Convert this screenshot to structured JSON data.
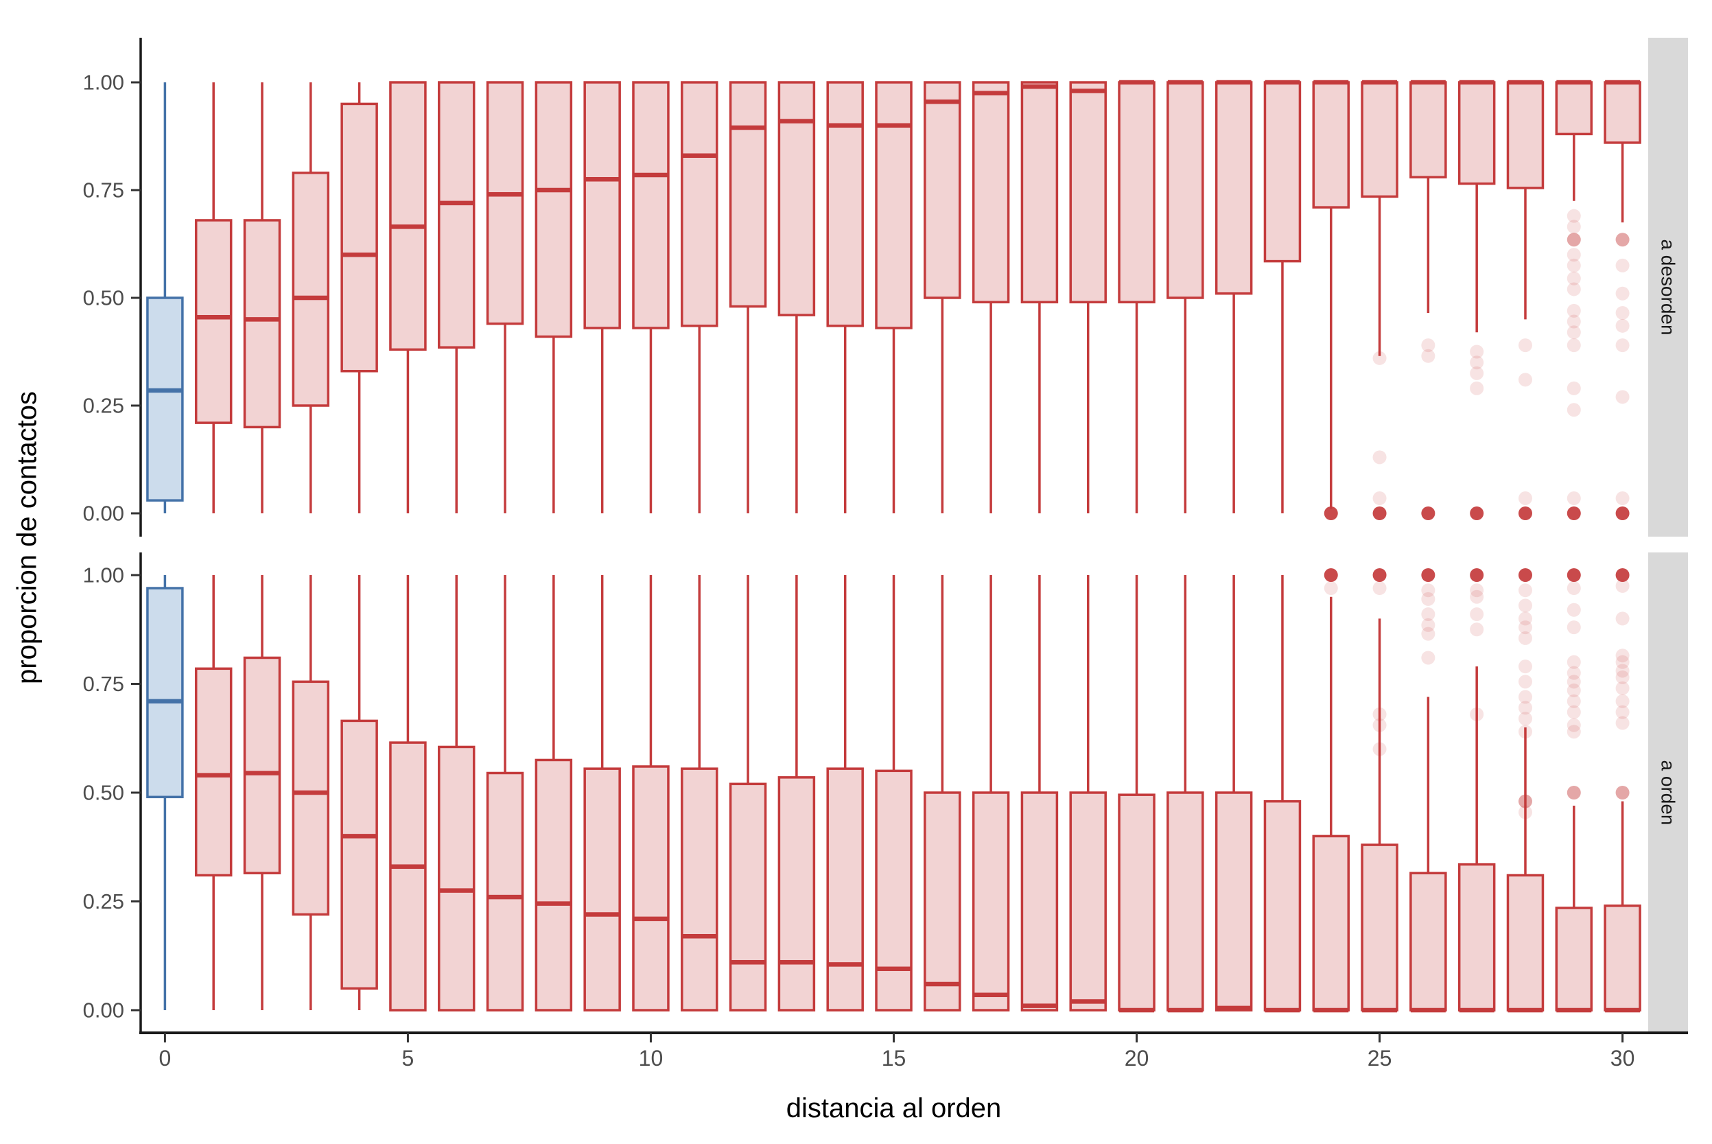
{
  "chart_data": {
    "type": "boxplot",
    "title": "",
    "xlabel": "distancia al orden",
    "ylabel": "proporcion de contactos",
    "x_ticks": [
      0,
      5,
      10,
      15,
      20,
      25,
      30
    ],
    "y_ticks": [
      "1.00",
      "0.75",
      "0.50",
      "0.25",
      "0.00"
    ],
    "y_tick_values": [
      1.0,
      0.75,
      0.5,
      0.25,
      0.0
    ],
    "xlim": [
      0,
      30
    ],
    "ylim": [
      0,
      1
    ],
    "grid": "off",
    "legend": "none",
    "facet_labels": [
      "a desorden",
      "a orden"
    ],
    "facets": [
      {
        "label": "a desorden",
        "boxes": [
          {
            "x": 0,
            "lo": 0,
            "q1": 0.03,
            "med": 0.285,
            "q3": 0.5,
            "hi": 1,
            "group": "blue"
          },
          {
            "x": 1,
            "lo": 0,
            "q1": 0.21,
            "med": 0.455,
            "q3": 0.68,
            "hi": 1,
            "group": "red"
          },
          {
            "x": 2,
            "lo": 0,
            "q1": 0.2,
            "med": 0.45,
            "q3": 0.68,
            "hi": 1,
            "group": "red"
          },
          {
            "x": 3,
            "lo": 0,
            "q1": 0.25,
            "med": 0.5,
            "q3": 0.79,
            "hi": 1,
            "group": "red"
          },
          {
            "x": 4,
            "lo": 0,
            "q1": 0.33,
            "med": 0.6,
            "q3": 0.95,
            "hi": 1,
            "group": "red"
          },
          {
            "x": 5,
            "lo": 0,
            "q1": 0.38,
            "med": 0.665,
            "q3": 1,
            "hi": 1,
            "group": "red"
          },
          {
            "x": 6,
            "lo": 0,
            "q1": 0.385,
            "med": 0.72,
            "q3": 1,
            "hi": 1,
            "group": "red"
          },
          {
            "x": 7,
            "lo": 0,
            "q1": 0.44,
            "med": 0.74,
            "q3": 1,
            "hi": 1,
            "group": "red"
          },
          {
            "x": 8,
            "lo": 0,
            "q1": 0.41,
            "med": 0.75,
            "q3": 1,
            "hi": 1,
            "group": "red"
          },
          {
            "x": 9,
            "lo": 0,
            "q1": 0.43,
            "med": 0.775,
            "q3": 1,
            "hi": 1,
            "group": "red"
          },
          {
            "x": 10,
            "lo": 0,
            "q1": 0.43,
            "med": 0.785,
            "q3": 1,
            "hi": 1,
            "group": "red"
          },
          {
            "x": 11,
            "lo": 0,
            "q1": 0.435,
            "med": 0.83,
            "q3": 1,
            "hi": 1,
            "group": "red"
          },
          {
            "x": 12,
            "lo": 0,
            "q1": 0.48,
            "med": 0.895,
            "q3": 1,
            "hi": 1,
            "group": "red"
          },
          {
            "x": 13,
            "lo": 0,
            "q1": 0.46,
            "med": 0.91,
            "q3": 1,
            "hi": 1,
            "group": "red"
          },
          {
            "x": 14,
            "lo": 0,
            "q1": 0.435,
            "med": 0.9,
            "q3": 1,
            "hi": 1,
            "group": "red"
          },
          {
            "x": 15,
            "lo": 0,
            "q1": 0.43,
            "med": 0.9,
            "q3": 1,
            "hi": 1,
            "group": "red"
          },
          {
            "x": 16,
            "lo": 0,
            "q1": 0.5,
            "med": 0.955,
            "q3": 1,
            "hi": 1,
            "group": "red"
          },
          {
            "x": 17,
            "lo": 0,
            "q1": 0.49,
            "med": 0.975,
            "q3": 1,
            "hi": 1,
            "group": "red"
          },
          {
            "x": 18,
            "lo": 0,
            "q1": 0.49,
            "med": 0.99,
            "q3": 1,
            "hi": 1,
            "group": "red"
          },
          {
            "x": 19,
            "lo": 0,
            "q1": 0.49,
            "med": 0.98,
            "q3": 1,
            "hi": 1,
            "group": "red"
          },
          {
            "x": 20,
            "lo": 0,
            "q1": 0.49,
            "med": 1,
            "q3": 1,
            "hi": 1,
            "group": "red"
          },
          {
            "x": 21,
            "lo": 0,
            "q1": 0.5,
            "med": 1,
            "q3": 1,
            "hi": 1,
            "group": "red"
          },
          {
            "x": 22,
            "lo": 0,
            "q1": 0.51,
            "med": 1,
            "q3": 1,
            "hi": 1,
            "group": "red"
          },
          {
            "x": 23,
            "lo": 0,
            "q1": 0.585,
            "med": 1,
            "q3": 1,
            "hi": 1,
            "group": "red"
          },
          {
            "x": 24,
            "lo": 0.01,
            "q1": 0.71,
            "med": 1,
            "q3": 1,
            "hi": 1,
            "group": "red",
            "out_dark": [
              0
            ]
          },
          {
            "x": 25,
            "lo": 0.365,
            "q1": 0.735,
            "med": 1,
            "q3": 1,
            "hi": 1,
            "group": "red",
            "out_dark": [
              0
            ],
            "out_pale": [
              0.36,
              0.13,
              0.035
            ]
          },
          {
            "x": 26,
            "lo": 0.465,
            "q1": 0.78,
            "med": 1,
            "q3": 1,
            "hi": 1,
            "group": "red",
            "out_dark": [
              0
            ],
            "out_pale": [
              0.39,
              0.365
            ]
          },
          {
            "x": 27,
            "lo": 0.42,
            "q1": 0.765,
            "med": 1,
            "q3": 1,
            "hi": 1,
            "group": "red",
            "out_dark": [
              0
            ],
            "out_pale": [
              0.375,
              0.35,
              0.325,
              0.29
            ]
          },
          {
            "x": 28,
            "lo": 0.45,
            "q1": 0.755,
            "med": 1,
            "q3": 1,
            "hi": 1,
            "group": "red",
            "out_dark": [
              0
            ],
            "out_pale": [
              0.39,
              0.31,
              0.035
            ]
          },
          {
            "x": 29,
            "lo": 0.725,
            "q1": 0.88,
            "med": 1,
            "q3": 1,
            "hi": 1,
            "group": "red",
            "out_dark": [
              0
            ],
            "out_mid": [
              0.635
            ],
            "out_pale": [
              0.69,
              0.665,
              0.6,
              0.575,
              0.545,
              0.52,
              0.47,
              0.445,
              0.42,
              0.39,
              0.29,
              0.24,
              0.035
            ]
          },
          {
            "x": 30,
            "lo": 0.675,
            "q1": 0.86,
            "med": 1,
            "q3": 1,
            "hi": 1,
            "group": "red",
            "out_dark": [
              0
            ],
            "out_mid": [
              0.635
            ],
            "out_pale": [
              0.575,
              0.51,
              0.465,
              0.435,
              0.39,
              0.27,
              0.035
            ]
          }
        ]
      },
      {
        "label": "a orden",
        "boxes": [
          {
            "x": 0,
            "lo": 0,
            "q1": 0.49,
            "med": 0.71,
            "q3": 0.97,
            "hi": 1,
            "group": "blue"
          },
          {
            "x": 1,
            "lo": 0,
            "q1": 0.31,
            "med": 0.54,
            "q3": 0.785,
            "hi": 1,
            "group": "red"
          },
          {
            "x": 2,
            "lo": 0,
            "q1": 0.315,
            "med": 0.545,
            "q3": 0.81,
            "hi": 1,
            "group": "red"
          },
          {
            "x": 3,
            "lo": 0,
            "q1": 0.22,
            "med": 0.5,
            "q3": 0.755,
            "hi": 1,
            "group": "red"
          },
          {
            "x": 4,
            "lo": 0,
            "q1": 0.05,
            "med": 0.4,
            "q3": 0.665,
            "hi": 1,
            "group": "red"
          },
          {
            "x": 5,
            "lo": 0,
            "q1": 0,
            "med": 0.33,
            "q3": 0.615,
            "hi": 1,
            "group": "red"
          },
          {
            "x": 6,
            "lo": 0,
            "q1": 0,
            "med": 0.275,
            "q3": 0.605,
            "hi": 1,
            "group": "red"
          },
          {
            "x": 7,
            "lo": 0,
            "q1": 0,
            "med": 0.26,
            "q3": 0.545,
            "hi": 1,
            "group": "red"
          },
          {
            "x": 8,
            "lo": 0,
            "q1": 0,
            "med": 0.245,
            "q3": 0.575,
            "hi": 1,
            "group": "red"
          },
          {
            "x": 9,
            "lo": 0,
            "q1": 0,
            "med": 0.22,
            "q3": 0.555,
            "hi": 1,
            "group": "red"
          },
          {
            "x": 10,
            "lo": 0,
            "q1": 0,
            "med": 0.21,
            "q3": 0.56,
            "hi": 1,
            "group": "red"
          },
          {
            "x": 11,
            "lo": 0,
            "q1": 0,
            "med": 0.17,
            "q3": 0.555,
            "hi": 1,
            "group": "red"
          },
          {
            "x": 12,
            "lo": 0,
            "q1": 0,
            "med": 0.11,
            "q3": 0.52,
            "hi": 1,
            "group": "red"
          },
          {
            "x": 13,
            "lo": 0,
            "q1": 0,
            "med": 0.11,
            "q3": 0.535,
            "hi": 1,
            "group": "red"
          },
          {
            "x": 14,
            "lo": 0,
            "q1": 0,
            "med": 0.105,
            "q3": 0.555,
            "hi": 1,
            "group": "red"
          },
          {
            "x": 15,
            "lo": 0,
            "q1": 0,
            "med": 0.095,
            "q3": 0.55,
            "hi": 1,
            "group": "red"
          },
          {
            "x": 16,
            "lo": 0,
            "q1": 0,
            "med": 0.06,
            "q3": 0.5,
            "hi": 1,
            "group": "red"
          },
          {
            "x": 17,
            "lo": 0,
            "q1": 0,
            "med": 0.035,
            "q3": 0.5,
            "hi": 1,
            "group": "red"
          },
          {
            "x": 18,
            "lo": 0,
            "q1": 0,
            "med": 0.01,
            "q3": 0.5,
            "hi": 1,
            "group": "red"
          },
          {
            "x": 19,
            "lo": 0,
            "q1": 0,
            "med": 0.02,
            "q3": 0.5,
            "hi": 1,
            "group": "red"
          },
          {
            "x": 20,
            "lo": 0,
            "q1": 0,
            "med": 0,
            "q3": 0.495,
            "hi": 1,
            "group": "red"
          },
          {
            "x": 21,
            "lo": 0,
            "q1": 0,
            "med": 0,
            "q3": 0.5,
            "hi": 1,
            "group": "red"
          },
          {
            "x": 22,
            "lo": 0,
            "q1": 0,
            "med": 0.005,
            "q3": 0.5,
            "hi": 1,
            "group": "red"
          },
          {
            "x": 23,
            "lo": 0,
            "q1": 0,
            "med": 0,
            "q3": 0.48,
            "hi": 1,
            "group": "red"
          },
          {
            "x": 24,
            "lo": 0,
            "q1": 0,
            "med": 0,
            "q3": 0.4,
            "hi": 0.95,
            "group": "red",
            "out_dark": [
              1
            ],
            "out_pale": [
              0.97
            ]
          },
          {
            "x": 25,
            "lo": 0,
            "q1": 0,
            "med": 0,
            "q3": 0.38,
            "hi": 0.9,
            "group": "red",
            "out_dark": [
              1
            ],
            "out_pale": [
              0.97,
              0.68,
              0.655,
              0.6
            ]
          },
          {
            "x": 26,
            "lo": 0,
            "q1": 0,
            "med": 0,
            "q3": 0.315,
            "hi": 0.72,
            "group": "red",
            "out_dark": [
              1
            ],
            "out_pale": [
              0.965,
              0.945,
              0.91,
              0.885,
              0.865,
              0.81
            ]
          },
          {
            "x": 27,
            "lo": 0,
            "q1": 0,
            "med": 0,
            "q3": 0.335,
            "hi": 0.79,
            "group": "red",
            "out_dark": [
              1
            ],
            "out_pale": [
              0.965,
              0.95,
              0.91,
              0.875,
              0.68
            ]
          },
          {
            "x": 28,
            "lo": 0,
            "q1": 0,
            "med": 0,
            "q3": 0.31,
            "hi": 0.65,
            "group": "red",
            "out_dark": [
              1
            ],
            "out_mid": [
              0.48
            ],
            "out_pale": [
              0.965,
              0.93,
              0.9,
              0.88,
              0.855,
              0.79,
              0.755,
              0.72,
              0.695,
              0.67,
              0.64,
              0.455
            ]
          },
          {
            "x": 29,
            "lo": 0,
            "q1": 0,
            "med": 0,
            "q3": 0.235,
            "hi": 0.47,
            "group": "red",
            "out_dark": [
              1
            ],
            "out_mid": [
              0.5
            ],
            "out_pale": [
              0.97,
              0.92,
              0.88,
              0.8,
              0.775,
              0.755,
              0.735,
              0.71,
              0.685,
              0.655,
              0.64
            ]
          },
          {
            "x": 30,
            "lo": 0,
            "q1": 0,
            "med": 0,
            "q3": 0.24,
            "hi": 0.48,
            "group": "red",
            "out_dark": [
              1
            ],
            "out_mid": [
              0.5
            ],
            "out_pale": [
              0.975,
              0.9,
              0.815,
              0.8,
              0.78,
              0.765,
              0.74,
              0.71,
              0.685,
              0.66
            ]
          }
        ]
      }
    ],
    "colors": {
      "red_stroke": "#C43B3C",
      "red_fill": "#F2D3D3",
      "blue_stroke": "#4472A8",
      "blue_fill": "#CCDCEC",
      "strip_bg": "#D9D9D9",
      "strip_text": "#1A1A1A",
      "tick_text": "#4D4D4D",
      "axis_line": "#1A1A1A"
    }
  }
}
